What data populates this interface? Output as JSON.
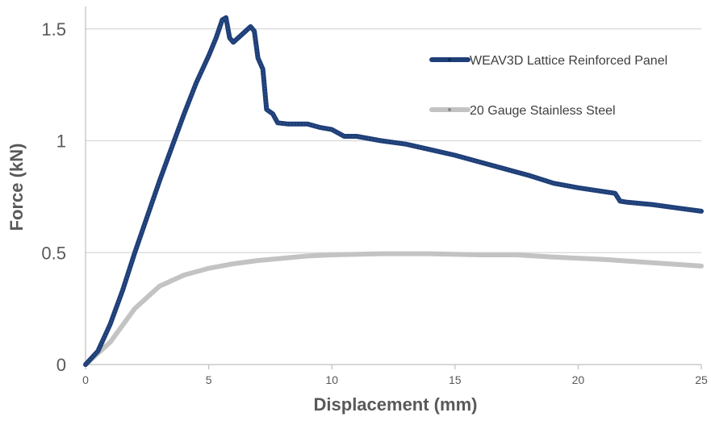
{
  "chart_data": {
    "type": "line",
    "title": "",
    "xlabel": "Displacement (mm)",
    "ylabel": "Force (kN)",
    "xlim": [
      0,
      25
    ],
    "ylim": [
      0,
      1.6
    ],
    "x_ticks": [
      0,
      5,
      10,
      15,
      20,
      25
    ],
    "x_tick_labels": [
      "0",
      "5",
      "10",
      "15",
      "20",
      "25"
    ],
    "y_ticks": [
      0,
      0.5,
      1,
      1.5
    ],
    "y_tick_labels": [
      "0",
      "0.5",
      "1",
      "1.5"
    ],
    "grid": "horizontal",
    "legend_position": "top-right",
    "series": [
      {
        "name": "WEAV3D Lattice Reinforced Panel",
        "color": "#1f3f78",
        "points": [
          [
            0,
            0
          ],
          [
            0.5,
            0.06
          ],
          [
            1,
            0.18
          ],
          [
            1.5,
            0.33
          ],
          [
            2,
            0.5
          ],
          [
            2.5,
            0.66
          ],
          [
            3,
            0.82
          ],
          [
            3.5,
            0.97
          ],
          [
            4,
            1.12
          ],
          [
            4.5,
            1.26
          ],
          [
            5,
            1.38
          ],
          [
            5.3,
            1.46
          ],
          [
            5.55,
            1.54
          ],
          [
            5.7,
            1.55
          ],
          [
            5.85,
            1.46
          ],
          [
            6.0,
            1.44
          ],
          [
            6.3,
            1.47
          ],
          [
            6.7,
            1.51
          ],
          [
            6.85,
            1.49
          ],
          [
            7.0,
            1.37
          ],
          [
            7.2,
            1.32
          ],
          [
            7.35,
            1.14
          ],
          [
            7.6,
            1.12
          ],
          [
            7.8,
            1.08
          ],
          [
            8.2,
            1.075
          ],
          [
            9.0,
            1.075
          ],
          [
            9.5,
            1.06
          ],
          [
            10,
            1.05
          ],
          [
            10.5,
            1.02
          ],
          [
            11,
            1.02
          ],
          [
            12,
            1.0
          ],
          [
            13,
            0.985
          ],
          [
            14,
            0.96
          ],
          [
            15,
            0.935
          ],
          [
            16,
            0.905
          ],
          [
            17,
            0.875
          ],
          [
            18,
            0.845
          ],
          [
            19,
            0.81
          ],
          [
            20,
            0.79
          ],
          [
            21.5,
            0.765
          ],
          [
            21.7,
            0.73
          ],
          [
            22,
            0.725
          ],
          [
            23,
            0.715
          ],
          [
            24,
            0.7
          ],
          [
            25,
            0.685
          ]
        ]
      },
      {
        "name": "20 Gauge Stainless Steel",
        "color": "#c3c3c3",
        "points": [
          [
            0,
            0
          ],
          [
            1,
            0.1
          ],
          [
            2,
            0.25
          ],
          [
            3,
            0.35
          ],
          [
            4,
            0.4
          ],
          [
            5,
            0.43
          ],
          [
            6,
            0.45
          ],
          [
            7,
            0.465
          ],
          [
            8,
            0.475
          ],
          [
            9,
            0.485
          ],
          [
            10,
            0.49
          ],
          [
            12,
            0.495
          ],
          [
            14,
            0.495
          ],
          [
            16,
            0.49
          ],
          [
            17.5,
            0.49
          ],
          [
            19,
            0.48
          ],
          [
            21,
            0.47
          ],
          [
            23,
            0.455
          ],
          [
            25,
            0.44
          ]
        ]
      }
    ]
  }
}
